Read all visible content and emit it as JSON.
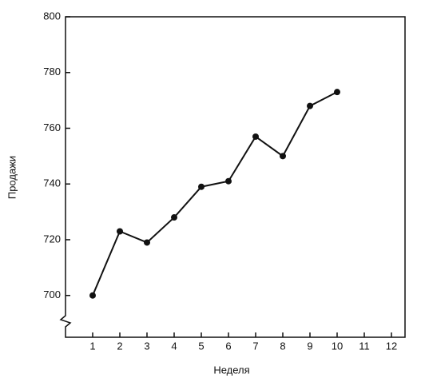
{
  "chart_data": {
    "type": "line",
    "x_label": "Неделя",
    "y_label": "Продажи",
    "series": [
      {
        "color": "#111111",
        "x": [
          1,
          2,
          3,
          4,
          5,
          6,
          7,
          8,
          9,
          10
        ],
        "values": [
          700,
          723,
          719,
          728,
          739,
          741,
          757,
          750,
          768,
          773
        ]
      }
    ],
    "xlim": [
      0,
      12.5
    ],
    "xticks": [
      1,
      2,
      3,
      4,
      5,
      6,
      7,
      8,
      9,
      10,
      11,
      12
    ],
    "ylim": [
      685,
      800
    ],
    "yticks": [
      700,
      720,
      740,
      760,
      780,
      800
    ],
    "grid": false
  }
}
